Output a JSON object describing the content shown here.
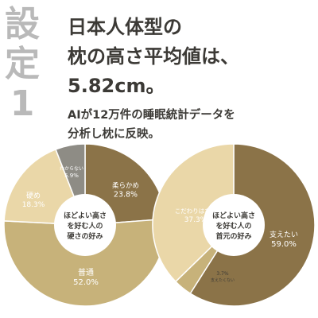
{
  "side_label": [
    "設",
    "定",
    "1"
  ],
  "headline": [
    "日本人体型の",
    "枕の高さ平均値は、",
    "5.82cm。"
  ],
  "subhead": [
    "AIが12万件の睡眠統計データを",
    "分析し枕に反映。"
  ],
  "colors": {
    "side_label": "#b9b9b9",
    "text_dark": "#3c3a36",
    "brown": "#8b7348",
    "gold": "#c7b27a",
    "beige": "#ead7a8",
    "gray": "#8e8c85",
    "white": "#ffffff"
  },
  "chart_data": [
    {
      "type": "pie",
      "style": "donut",
      "center_label": [
        "ほどよい高さ",
        "を好む人の",
        "硬さの好み"
      ],
      "slices": [
        {
          "label": "柔らかめ",
          "value": 23.8,
          "value_label": "23.8%",
          "color": "#8b7348"
        },
        {
          "label": "普通",
          "value": 52.0,
          "value_label": "52.0%",
          "color": "#c7b27a"
        },
        {
          "label": "硬め",
          "value": 18.3,
          "value_label": "18.3%",
          "color": "#ead7a8"
        },
        {
          "label": "わからない",
          "value": 5.9,
          "value_label": "5.9%",
          "color": "#8e8c85"
        }
      ]
    },
    {
      "type": "pie",
      "style": "donut",
      "center_label": [
        "ほどよい高さ",
        "を好む人の",
        "首元の好み"
      ],
      "slices": [
        {
          "label": "支えたい",
          "value": 59.0,
          "value_label": "59.0%",
          "color": "#8b7348"
        },
        {
          "label": "支えたくない",
          "value": 3.7,
          "value_label": "3.7%",
          "color": "#c7b27a"
        },
        {
          "label": "こだわりはない",
          "value": 37.3,
          "value_label": "37.3%",
          "color": "#ead7a8"
        }
      ]
    }
  ]
}
